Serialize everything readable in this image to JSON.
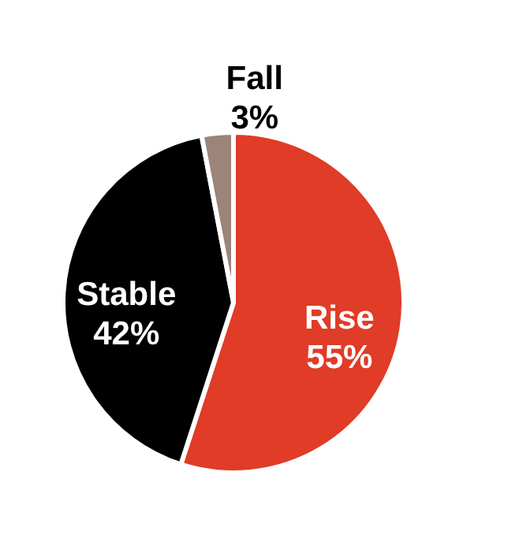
{
  "chart_data": {
    "type": "pie",
    "categories": [
      "Rise",
      "Stable",
      "Fall"
    ],
    "values": [
      55,
      42,
      3
    ],
    "value_labels": [
      "55%",
      "42%",
      "3%"
    ],
    "colors": [
      "#e03c28",
      "#000000",
      "#9c8478"
    ]
  }
}
